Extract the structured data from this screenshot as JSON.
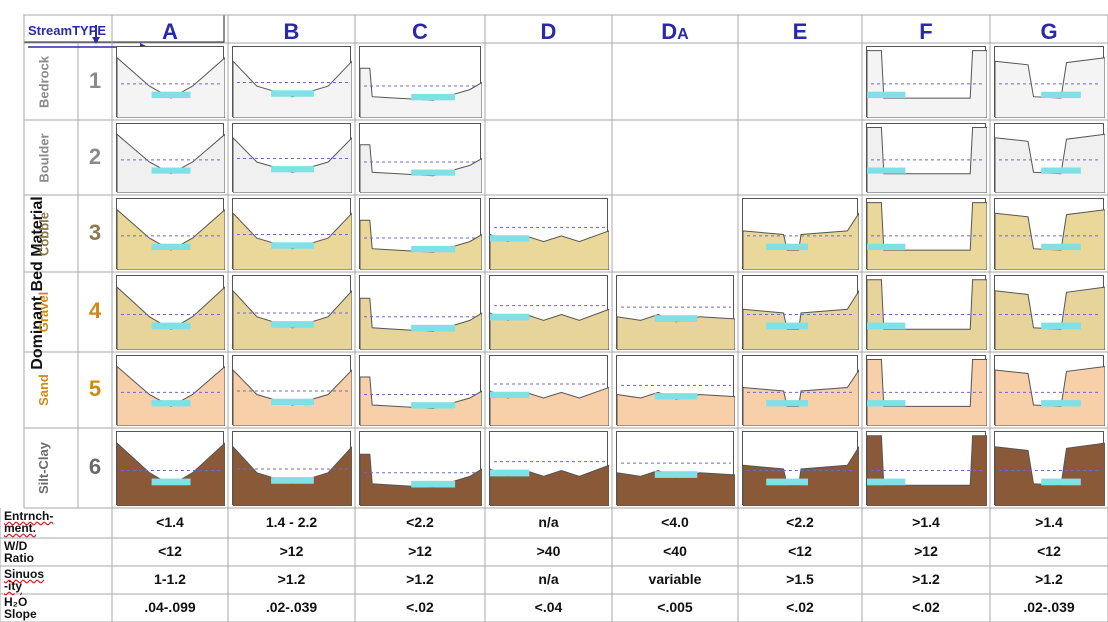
{
  "header": {
    "stream_type_label": "StreamTYPE",
    "columns": [
      "A",
      "B",
      "C",
      "D",
      "DA",
      "E",
      "F",
      "G"
    ]
  },
  "side_label": "Dominant Bed Material",
  "materials": [
    {
      "name": "Bedrock",
      "number": "1",
      "color": "#8a8a8a"
    },
    {
      "name": "Boulder",
      "number": "2",
      "color": "#8a8a8a"
    },
    {
      "name": "Cobble",
      "number": "3",
      "color": "#8a7a4a"
    },
    {
      "name": "Gravel",
      "number": "4",
      "color": "#d08a10"
    },
    {
      "name": "Sand",
      "number": "5",
      "color": "#d08a10"
    },
    {
      "name": "Silt-Clay",
      "number": "6",
      "color": "#6a6a6a"
    }
  ],
  "availability": [
    [
      true,
      true,
      true,
      false,
      false,
      false,
      true,
      true
    ],
    [
      true,
      true,
      true,
      false,
      false,
      false,
      true,
      true
    ],
    [
      true,
      true,
      true,
      true,
      false,
      true,
      true,
      true
    ],
    [
      true,
      true,
      true,
      true,
      true,
      true,
      true,
      true
    ],
    [
      true,
      true,
      true,
      true,
      true,
      true,
      true,
      true
    ],
    [
      true,
      true,
      true,
      true,
      true,
      true,
      true,
      true
    ]
  ],
  "metrics": [
    {
      "label_line1": "Entrnch-",
      "label_line2": "ment.",
      "values": [
        "<1.4",
        "1.4 - 2.2",
        "<2.2",
        "n/a",
        "<4.0",
        "<2.2",
        ">1.4",
        ">1.4"
      ]
    },
    {
      "label_line1": "W/D",
      "label_line2": "Ratio",
      "values": [
        "<12",
        ">12",
        ">12",
        ">40",
        "<40",
        "<12",
        ">12",
        "<12"
      ]
    },
    {
      "label_line1": "Sinuos",
      "label_line2": "-ity",
      "values": [
        "1-1.2",
        ">1.2",
        ">1.2",
        "n/a",
        "variable",
        ">1.5",
        ">1.2",
        ">1.2"
      ]
    },
    {
      "label_line1": "H₂O",
      "label_line2": "Slope",
      "values": [
        ".04-.099",
        ".02-.039",
        "<.02",
        "<.04",
        "<.005",
        "<.02",
        "<.02",
        ".02-.039"
      ]
    }
  ],
  "colors": {
    "accent": "#2a2aa8",
    "water": "#7fe0e6",
    "bedrock_fill": "#f4f4f4",
    "cobble_fill": "#ead79a",
    "gravel_fill": "#e6d49a",
    "sand_fill": "#f7cfa8",
    "silt_fill": "#8a5a38",
    "bank_dark": "#7a4a2a"
  }
}
